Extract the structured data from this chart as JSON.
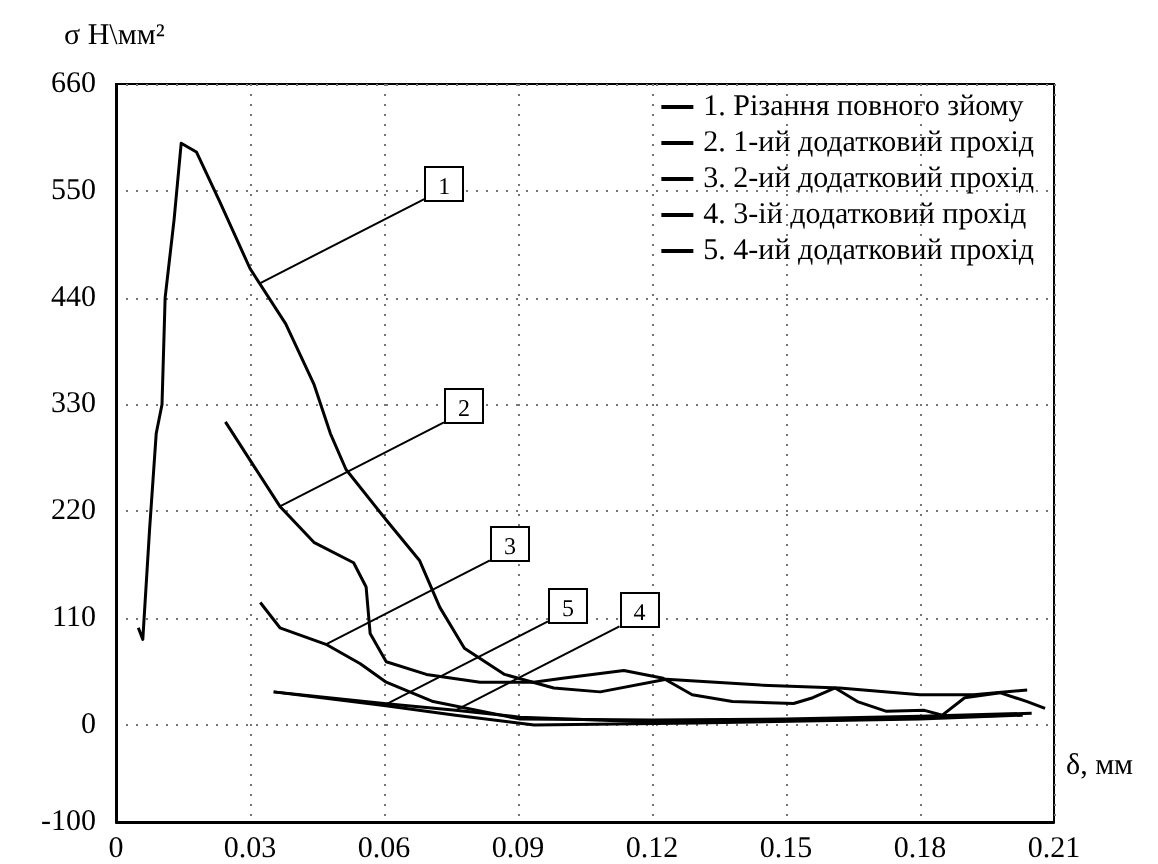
{
  "chart_data": {
    "type": "line",
    "ylabel": "σ Н\\мм²",
    "xlabel": "δ, мм",
    "xlim": [
      0,
      0.21
    ],
    "xticks": [
      0,
      0.03,
      0.06,
      0.09,
      0.12,
      0.15,
      0.18,
      0.21
    ],
    "ylim": [
      -100,
      660
    ],
    "yticks": [
      -100,
      0,
      110,
      220,
      330,
      440,
      550,
      660
    ],
    "grid": true,
    "legend": "top right",
    "marker": "none",
    "line_style": "solid",
    "series": [
      {
        "name": "1. Різання повного зйому",
        "color": "#000000",
        "x": [
          0.005,
          0.006,
          0.0075,
          0.009,
          0.0103,
          0.011,
          0.012,
          0.013,
          0.0146,
          0.018,
          0.0233,
          0.03,
          0.038,
          0.0443,
          0.048,
          0.0515,
          0.0605,
          0.068,
          0.0725,
          0.078,
          0.087,
          0.098,
          0.1084,
          0.1232,
          0.1443,
          0.162,
          0.18,
          0.192,
          0.204
        ],
        "values": [
          100,
          88,
          200,
          300,
          330,
          440,
          480,
          520,
          599,
          590,
          538,
          470,
          413,
          351,
          300,
          263,
          211,
          169,
          121,
          79,
          52,
          38,
          34,
          47,
          41,
          38,
          31,
          31,
          36
        ]
      },
      {
        "name": "2. 1-ий додатковий прохід",
        "color": "#000000",
        "x": [
          0.0245,
          0.0308,
          0.0367,
          0.0443,
          0.0532,
          0.056,
          0.0569,
          0.0605,
          0.0695,
          0.0815,
          0.0935,
          0.1,
          0.1137,
          0.1225,
          0.129,
          0.138,
          0.1517,
          0.156,
          0.161,
          0.166,
          0.1725,
          0.181,
          0.185,
          0.19,
          0.198,
          0.204,
          0.208
        ],
        "values": [
          312,
          267,
          225,
          188,
          167,
          142,
          94,
          65,
          52,
          44,
          44,
          48,
          56,
          48,
          31,
          24,
          22,
          28,
          38,
          24,
          14,
          15,
          10,
          28,
          33,
          24,
          17
        ]
      },
      {
        "name": "3. 2-ий додатковий прохід",
        "color": "#000000",
        "x": [
          0.0323,
          0.0367,
          0.047,
          0.0547,
          0.0605,
          0.071,
          0.0905,
          0.12,
          0.15,
          0.18,
          0.205
        ],
        "values": [
          126,
          100,
          83,
          63,
          44,
          24,
          6,
          5,
          6,
          9,
          12
        ]
      },
      {
        "name": "4. 3-ій додатковий прохід",
        "color": "#000000",
        "x": [
          0.0353,
          0.06,
          0.076,
          0.0905,
          0.12,
          0.16,
          0.2
        ],
        "values": [
          34,
          22,
          15,
          8,
          3,
          5,
          10
        ]
      },
      {
        "name": "5. 4-ий додатковий прохід",
        "color": "#000000",
        "x": [
          0.0353,
          0.06,
          0.076,
          0.0936,
          0.13,
          0.18,
          0.203
        ],
        "values": [
          34,
          20,
          10,
          0,
          2,
          6,
          10
        ]
      }
    ],
    "annotations": [
      {
        "text": "1",
        "x": 0.0323,
        "y": 455
      },
      {
        "text": "2",
        "x": 0.0367,
        "y": 225
      },
      {
        "text": "3",
        "x": 0.047,
        "y": 83
      },
      {
        "text": "4",
        "x": 0.076,
        "y": 15
      },
      {
        "text": "5",
        "x": 0.06,
        "y": 20
      }
    ]
  }
}
